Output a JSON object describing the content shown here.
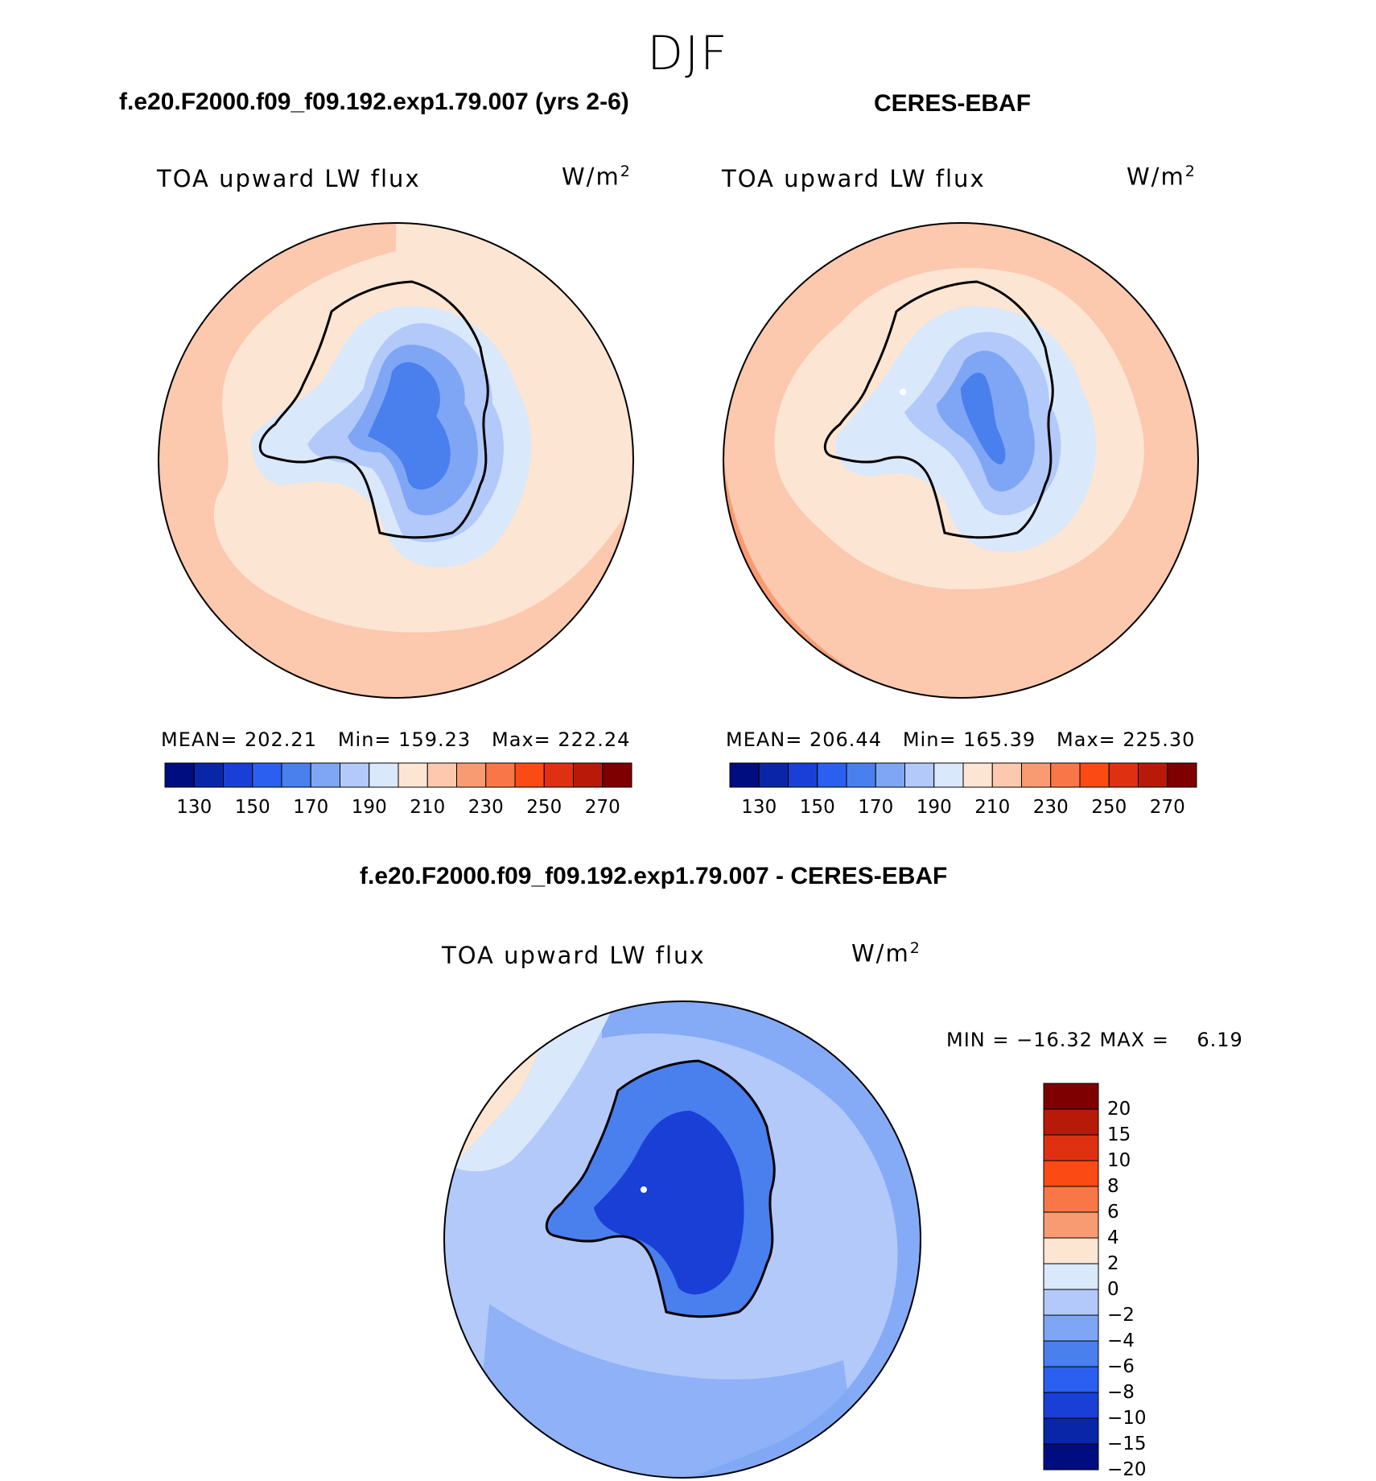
{
  "season": "DJF",
  "panels": {
    "model": {
      "title": "f.e20.F2000.f09_f09.192.exp1.79.007 (yrs 2-6)",
      "variable": "TOA upward LW flux",
      "units": "W/m",
      "units_sup": "2",
      "stats": "MEAN= 202.21   Min= 159.23   Max= 222.24",
      "mean": 202.21,
      "min": 159.23,
      "max": 222.24
    },
    "obs": {
      "title": "CERES-EBAF",
      "variable": "TOA upward LW flux",
      "units": "W/m",
      "units_sup": "2",
      "stats": "MEAN= 206.44   Min= 165.39   Max= 225.30",
      "mean": 206.44,
      "min": 165.39,
      "max": 225.3
    },
    "diff": {
      "title": "f.e20.F2000.f09_f09.192.exp1.79.007 - CERES-EBAF",
      "variable": "TOA upward LW flux",
      "units": "W/m",
      "units_sup": "2",
      "stats": "MIN = −16.32 MAX =    6.19",
      "min": -16.32,
      "max": 6.19
    }
  },
  "colorbar_abs": {
    "colors": [
      "#000d80",
      "#0a26a8",
      "#1a3fd6",
      "#2a5ff0",
      "#4a7fee",
      "#7fa6f5",
      "#b2c9fa",
      "#d9e8fb",
      "#fde5d3",
      "#fcc8ae",
      "#f99b72",
      "#f97747",
      "#fc4a14",
      "#e03012",
      "#b81a0a",
      "#7e0000"
    ],
    "tick_labels": [
      "130",
      "150",
      "170",
      "190",
      "210",
      "230",
      "250",
      "270"
    ]
  },
  "colorbar_diff": {
    "colors": [
      "#7e0000",
      "#b81a0a",
      "#e03012",
      "#fc4a14",
      "#f97747",
      "#f99b72",
      "#fde5d3",
      "#d9e8fb",
      "#b2c9fa",
      "#7fa6f5",
      "#4a7fee",
      "#2a5ff0",
      "#1a3fd6",
      "#0a26a8",
      "#000d80"
    ],
    "tick_labels": [
      "20",
      "15",
      "10",
      "8",
      "6",
      "4",
      "2",
      "0",
      "−2",
      "−4",
      "−6",
      "−8",
      "−10",
      "−15",
      "−20"
    ]
  },
  "map_colors": {
    "ocean_model": "#fde5d3",
    "ocean_obs": "#fcc8ae",
    "ocean_edge": "#f99b72",
    "ice_outer": "#d9e8fb",
    "ice_mid": "#b2c9fa",
    "ice_inner": "#7fa6f5",
    "ice_core": "#4a7fee",
    "ice_deep": "#2a5ff0",
    "diff_ocean": "#b2c9fa",
    "diff_ocean2": "#7fa6f5",
    "diff_land": "#4a7fee",
    "diff_land_core": "#1a3fd6",
    "diff_pos": "#fde5d3",
    "diff_zero": "#d9e8fb",
    "coast": "#000000"
  }
}
